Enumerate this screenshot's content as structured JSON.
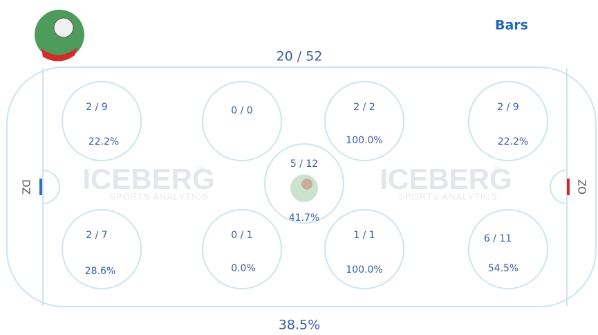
{
  "header": {
    "team": "Bars",
    "total": "20 / 52",
    "total_pct": "38.5%"
  },
  "rink": {
    "left_label": "DZ",
    "right_label": "OZ",
    "watermark": {
      "brand": "ICEBERG",
      "tm": "™",
      "sub": "SPORTS ANALYTICS"
    },
    "zones": [
      {
        "fraction": "2 / 9",
        "pct": "22.2%"
      },
      {
        "fraction": "0 / 0"
      },
      {
        "fraction": "2 / 2",
        "pct": "100.0%"
      },
      {
        "fraction": "2 / 9",
        "pct": "22.2%"
      },
      {
        "fraction": "5 / 12",
        "pct": "41.7%"
      },
      {
        "fraction": "2 / 7",
        "pct": "28.6%"
      },
      {
        "fraction": "0 / 1",
        "pct": "0.0%"
      },
      {
        "fraction": "1 / 1",
        "pct": "100.0%"
      },
      {
        "fraction": "6 / 11",
        "pct": "54.5%"
      }
    ]
  }
}
